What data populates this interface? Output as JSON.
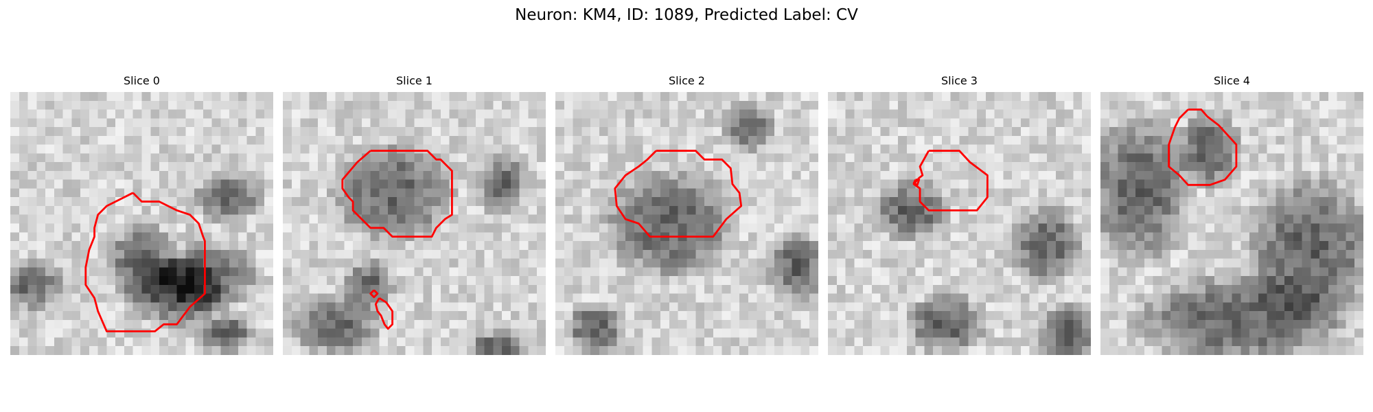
{
  "figure": {
    "title": "Neuron: KM4, ID: 1089, Predicted Label: CV",
    "contour_color": "#ff0000"
  },
  "slices": [
    {
      "title": "Slice 0"
    },
    {
      "title": "Slice 1"
    },
    {
      "title": "Slice 2"
    },
    {
      "title": "Slice 3"
    },
    {
      "title": "Slice 4"
    }
  ]
}
